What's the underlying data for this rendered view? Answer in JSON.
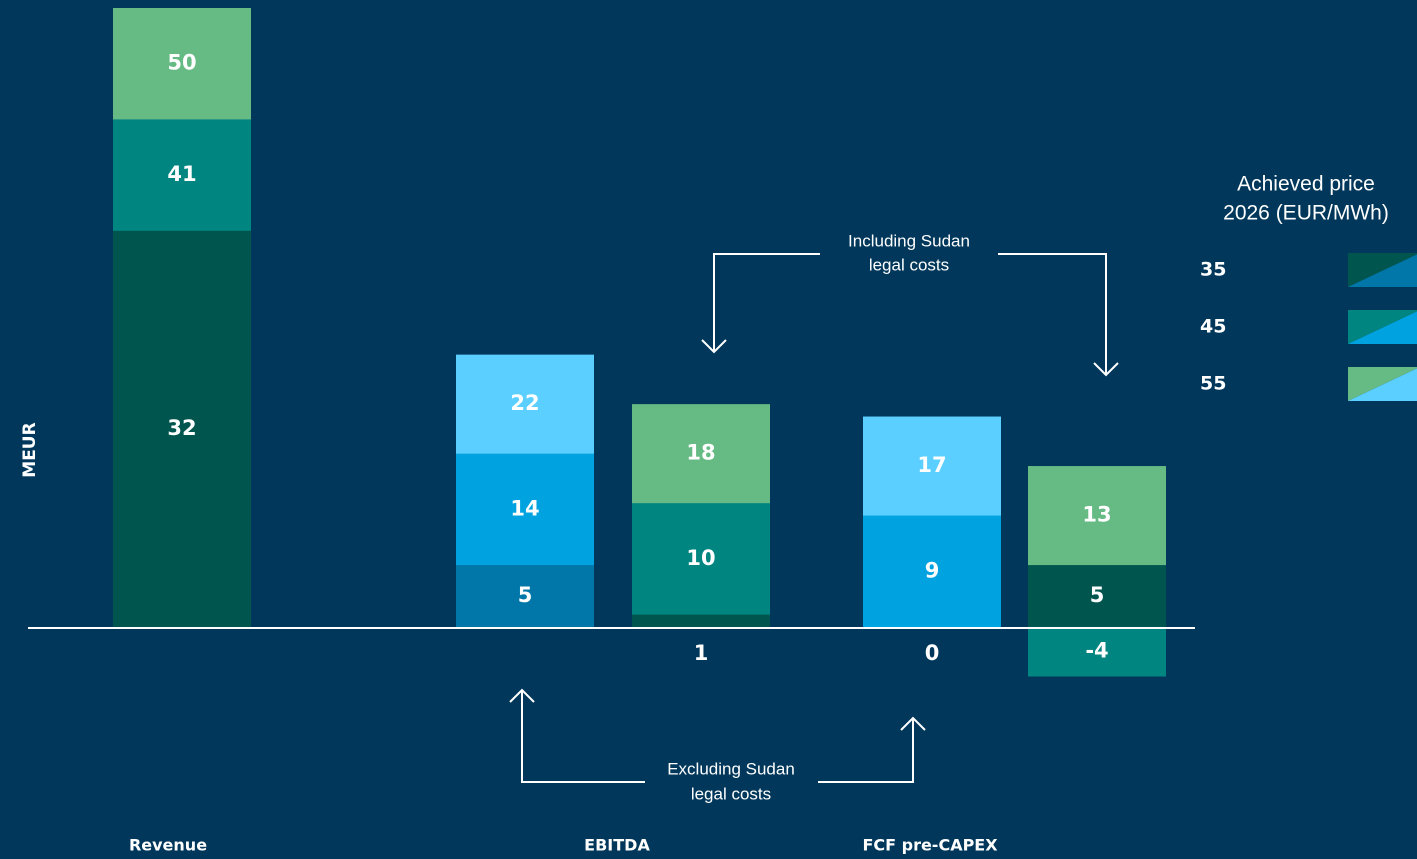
{
  "chart_data": {
    "type": "bar",
    "y_label": "MEUR",
    "ylim": [
      -4,
      50
    ],
    "legend_title": [
      "Achieved price",
      "2026 (EUR/MWh)"
    ],
    "series": [
      {
        "name": "35",
        "colors": [
          "#00564f",
          "#0077a8"
        ]
      },
      {
        "name": "45",
        "colors": [
          "#008580",
          "#00a3e0"
        ]
      },
      {
        "name": "55",
        "colors": [
          "#66bb84",
          "#5bcfff"
        ]
      }
    ],
    "groups": [
      {
        "name": "Revenue",
        "bars": [
          {
            "values": [
              32,
              41,
              50
            ],
            "colors": [
              "#00564f",
              "#008580",
              "#66bb84"
            ]
          }
        ]
      },
      {
        "name": "EBITDA",
        "bars": [
          {
            "values": [
              5,
              14,
              22
            ],
            "colors": [
              "#0077a8",
              "#00a3e0",
              "#5bcfff"
            ]
          },
          {
            "values": [
              1,
              10,
              18
            ],
            "colors": [
              "#00564f",
              "#008580",
              "#66bb84"
            ]
          }
        ]
      },
      {
        "name": "FCF pre-CAPEX",
        "bars": [
          {
            "values": [
              0,
              9,
              17
            ],
            "colors": [
              "#0077a8",
              "#00a3e0",
              "#5bcfff"
            ]
          },
          {
            "values": [
              -4,
              5,
              13
            ],
            "colors": [
              "#008580",
              "#00564f",
              "#66bb84"
            ]
          }
        ]
      }
    ],
    "annotations": [
      {
        "lines": [
          "Including Sudan",
          "legal costs"
        ]
      },
      {
        "lines": [
          "Excluding Sudan",
          "legal costs"
        ]
      }
    ]
  }
}
